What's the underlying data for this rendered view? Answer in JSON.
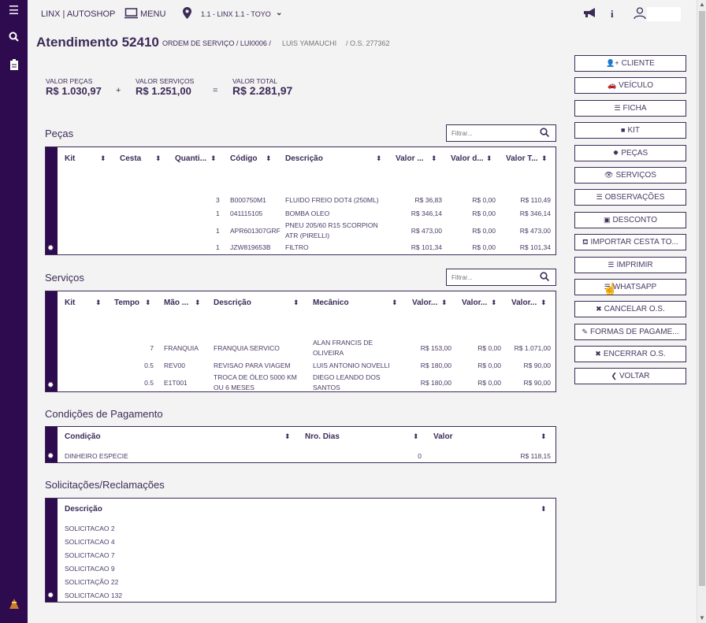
{
  "topbar": {
    "brand": "LINX | AUTOSHOP",
    "menu_label": "MENU",
    "location": "1.1 - LINX 1.1 - TOYO"
  },
  "header": {
    "title": "Atendimento 52410",
    "crumb_os": "ORDEM DE SERVIÇO / LUI0006 /",
    "crumb_client": "LUIS YAMAUCHI",
    "crumb_num": "/ O.S. 277362"
  },
  "totals": {
    "pecas_label": "VALOR PEÇAS",
    "pecas_value": "R$ 1.030,97",
    "plus": "+",
    "servicos_label": "VALOR SERVIÇOS",
    "servicos_value": "R$ 1.251,00",
    "equals": "=",
    "total_label": "VALOR TOTAL",
    "total_value": "R$ 2.281,97"
  },
  "pecas": {
    "title": "Peças",
    "filter_placeholder": "Filtrar...",
    "headers": [
      "Kit",
      "Cesta",
      "Quanti...",
      "Código",
      "Descrição",
      "Valor ...",
      "Valor d...",
      "Valor T..."
    ],
    "rows": [
      {
        "qty": "3",
        "code": "B000750M1",
        "desc": "FLUIDO FREIO DOT4 (250ML)",
        "desc2": "",
        "unit": "R$ 36,83",
        "disc": "R$ 0,00",
        "total": "R$ 110,49"
      },
      {
        "qty": "1",
        "code": "041115105",
        "desc": "BOMBA OLEO",
        "desc2": "",
        "unit": "R$ 346,14",
        "disc": "R$ 0,00",
        "total": "R$ 346,14"
      },
      {
        "qty": "1",
        "code": "APR601307GRF",
        "desc": "PNEU 205/60 R15 SCORPION",
        "desc2": "ATR (PIRELLI)",
        "unit": "R$ 473,00",
        "disc": "R$ 0,00",
        "total": "R$ 473,00"
      },
      {
        "qty": "1",
        "code": "JZW819653B",
        "desc": "FILTRO",
        "desc2": "",
        "unit": "R$ 101,34",
        "disc": "R$ 0,00",
        "total": "R$ 101,34"
      }
    ]
  },
  "servicos": {
    "title": "Serviços",
    "filter_placeholder": "Filtrar...",
    "headers": [
      "Kit",
      "Tempo",
      "Mão ...",
      "Descrição",
      "Mecânico",
      "Valor...",
      "Valor...",
      "Valor..."
    ],
    "rows": [
      {
        "tempo": "7",
        "mao": "FRANQUIA",
        "desc": "FRANQUIA SERVICO",
        "desc2": "",
        "mec": "ALAN FRANCIS DE",
        "mec2": "OLIVEIRA",
        "v1": "R$ 153,00",
        "v2": "R$ 0,00",
        "v3": "R$ 1.071,00"
      },
      {
        "tempo": "0.5",
        "mao": "REV00",
        "desc": "REVISAO PARA VIAGEM",
        "desc2": "",
        "mec": "LUIS ANTONIO NOVELLI",
        "mec2": "",
        "v1": "R$ 180,00",
        "v2": "R$ 0,00",
        "v3": "R$ 90,00"
      },
      {
        "tempo": "0.5",
        "mao": "E1T001",
        "desc": "TROCA DE ÓLEO 5000 KM",
        "desc2": "OU 6 MESES",
        "mec": "DIEGO LEANDO DOS",
        "mec2": "SANTOS",
        "v1": "R$ 180,00",
        "v2": "R$ 0,00",
        "v3": "R$ 90,00"
      }
    ]
  },
  "pagamento": {
    "title": "Condições de Pagamento",
    "headers": [
      "Condição",
      "Nro. Dias",
      "Valor"
    ],
    "rows": [
      {
        "cond": "DINHEIRO ESPECIE",
        "dias": "0",
        "valor": "R$ 118,15"
      }
    ]
  },
  "solicitacoes": {
    "title": "Solicitações/Reclamações",
    "header": "Descrição",
    "rows": [
      "SOLICITACAO 2",
      "SOLICITACAO 4",
      "SOLICITACAO 7",
      "SOLICITACAO 9",
      "SOLICITAÇÃO 22",
      "SOLICITACAO 132"
    ]
  },
  "actions": [
    {
      "label": "CLIENTE",
      "icon": "user-plus-icon"
    },
    {
      "label": "VEÍCULO",
      "icon": "car-icon"
    },
    {
      "label": "FICHA",
      "icon": "list-icon"
    },
    {
      "label": "KIT",
      "icon": "box-icon"
    },
    {
      "label": "PEÇAS",
      "icon": "gear-icon"
    },
    {
      "label": "SERVIÇOS",
      "icon": "eye-icon"
    },
    {
      "label": "OBSERVAÇÕES",
      "icon": "lines-icon"
    },
    {
      "label": "DESCONTO",
      "icon": "money-icon"
    },
    {
      "label": "IMPORTAR CESTA TO...",
      "icon": "basket-icon"
    },
    {
      "label": "IMPRIMIR",
      "icon": "lines-icon"
    },
    {
      "label": "WHATSAPP",
      "icon": "lines-icon"
    },
    {
      "label": "CANCELAR O.S.",
      "icon": "close-icon"
    },
    {
      "label": "FORMAS DE PAGAME...",
      "icon": "edit-icon"
    },
    {
      "label": "ENCERRAR O.S.",
      "icon": "close-icon"
    },
    {
      "label": "VOLTAR",
      "icon": "chevron-left-icon"
    }
  ],
  "colors": {
    "primary": "#2e0a4e",
    "text": "#3b2b57",
    "background": "#f4f3f3"
  }
}
